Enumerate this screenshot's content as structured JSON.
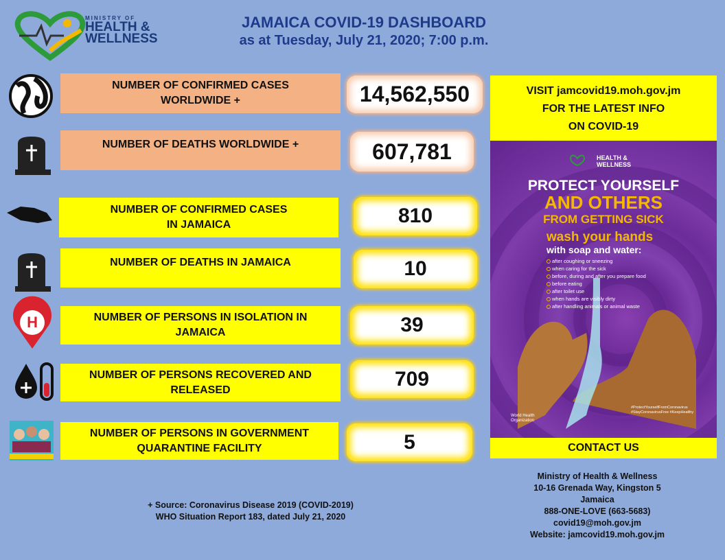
{
  "header": {
    "logo": {
      "line1": "MINISTRY OF",
      "line2": "HEALTH &",
      "line3": "WELLNESS"
    },
    "title": "JAMAICA COVID-19 DASHBOARD",
    "subtitle": "as at Tuesday, July 21, 2020; 7:00 p.m."
  },
  "stats": [
    {
      "label": "NUMBER OF CONFIRMED  CASES\nWORLDWIDE +",
      "value": "14,562,550"
    },
    {
      "label": "NUMBER OF DEATHS  WORLDWIDE +",
      "value": "607,781"
    },
    {
      "label": "NUMBER OF CONFIRMED  CASES\nIN JAMAICA",
      "value": "810"
    },
    {
      "label": "NUMBER OF DEATHS  IN JAMAICA",
      "value": "10"
    },
    {
      "label": "NUMBER OF PERSONS IN ISOLATION IN\nJAMAICA",
      "value": "39"
    },
    {
      "label": "NUMBER OF PERSONS RECOVERED AND\nRELEASED",
      "value": "709"
    },
    {
      "label": "NUMBER OF PERSONS IN GOVERNMENT\nQUARANTINE FACILITY",
      "value": "5"
    }
  ],
  "info_panel": {
    "visit": "VISIT  jamcovid19.moh.gov.jm\nFOR THE LATEST INFO\nON COVID-19",
    "poster": {
      "logo": "HEALTH & WELLNESS",
      "headline1": "PROTECT YOURSELF",
      "headline2": "AND OTHERS",
      "headline3": "FROM GETTING SICK",
      "subhead1": "wash your hands",
      "subhead2": "with soap and water:",
      "bullets": [
        "after coughing or sneezing",
        "when caring for the sick",
        "before, during and after you prepare food",
        "before eating",
        "after toilet use",
        "when hands are visibly dirty",
        "after handling animals or animal waste"
      ],
      "hashtags": "#ProtectYourselfFromCoronavirus\n#StayCoronavirusFree #KeepHealthy",
      "who": "World Health\nOrganization"
    },
    "contact": "CONTACT  US"
  },
  "footer": {
    "source": "+ Source: Coronavirus Disease 2019 (COVID-2019)\nWHO Situation Report 183, dated July 21, 2020",
    "address": [
      "Ministry of Health & Wellness",
      "10-16 Grenada Way, Kingston 5",
      "Jamaica",
      "888-ONE-LOVE (663-5683)",
      "covid19@moh.gov.jm",
      "Website: jamcovid19.moh.gov.jm"
    ]
  }
}
